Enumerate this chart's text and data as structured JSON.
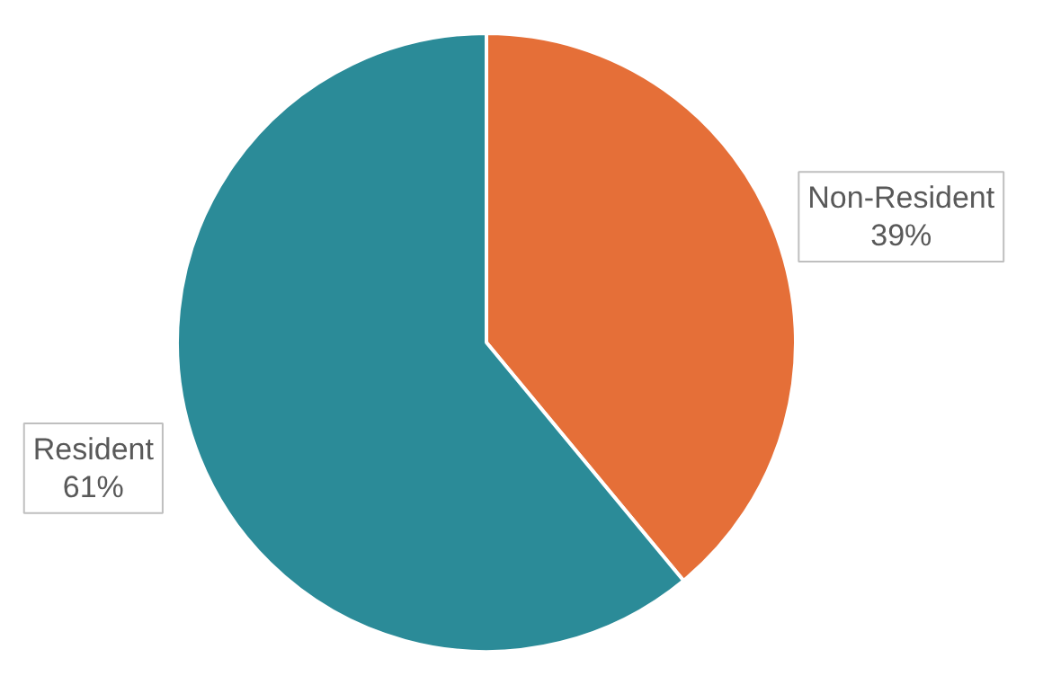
{
  "chart_data": {
    "type": "pie",
    "categories": [
      "Non-Resident",
      "Resident"
    ],
    "values": [
      39,
      61
    ],
    "colors": [
      "#e56f38",
      "#2b8b98"
    ],
    "value_labels": [
      "39%",
      "61%"
    ]
  }
}
